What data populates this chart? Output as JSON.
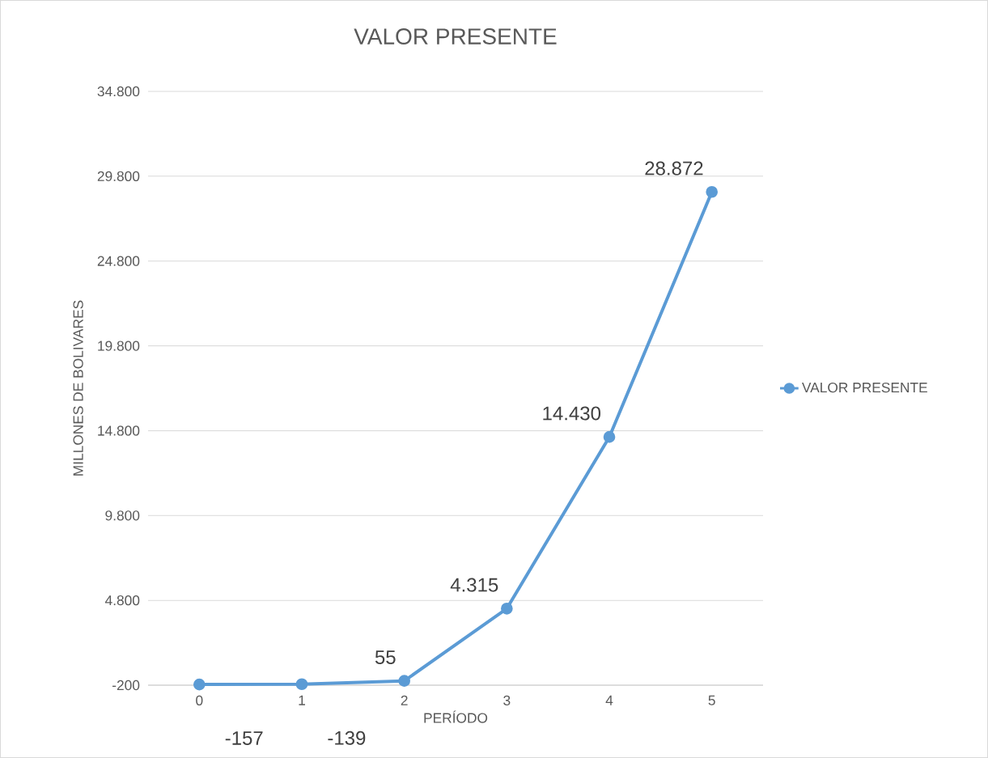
{
  "chart_data": {
    "type": "line",
    "title": "VALOR PRESENTE",
    "xlabel": "PERÍODO",
    "ylabel": "MILLONES DE BOLIVARES",
    "categories": [
      "0",
      "1",
      "2",
      "3",
      "4",
      "5"
    ],
    "series": [
      {
        "name": "VALOR PRESENTE",
        "color": "#5b9bd5",
        "values": [
          -157,
          -139,
          55,
          4315,
          14430,
          28872
        ],
        "value_labels": [
          "-157",
          "-139",
          "55",
          "4.315",
          "14.430",
          "28.872"
        ]
      }
    ],
    "ylim": [
      -200,
      34800
    ],
    "yticks": [
      {
        "value": -200,
        "label": "-200"
      },
      {
        "value": 4800,
        "label": "4.800"
      },
      {
        "value": 9800,
        "label": "9.800"
      },
      {
        "value": 14800,
        "label": "14.800"
      },
      {
        "value": 19800,
        "label": "19.800"
      },
      {
        "value": 24800,
        "label": "24.800"
      },
      {
        "value": 29800,
        "label": "29.800"
      },
      {
        "value": 34800,
        "label": "34.800"
      }
    ],
    "grid": "y",
    "legend": "right",
    "marker": "circle",
    "line_style": "solid"
  }
}
